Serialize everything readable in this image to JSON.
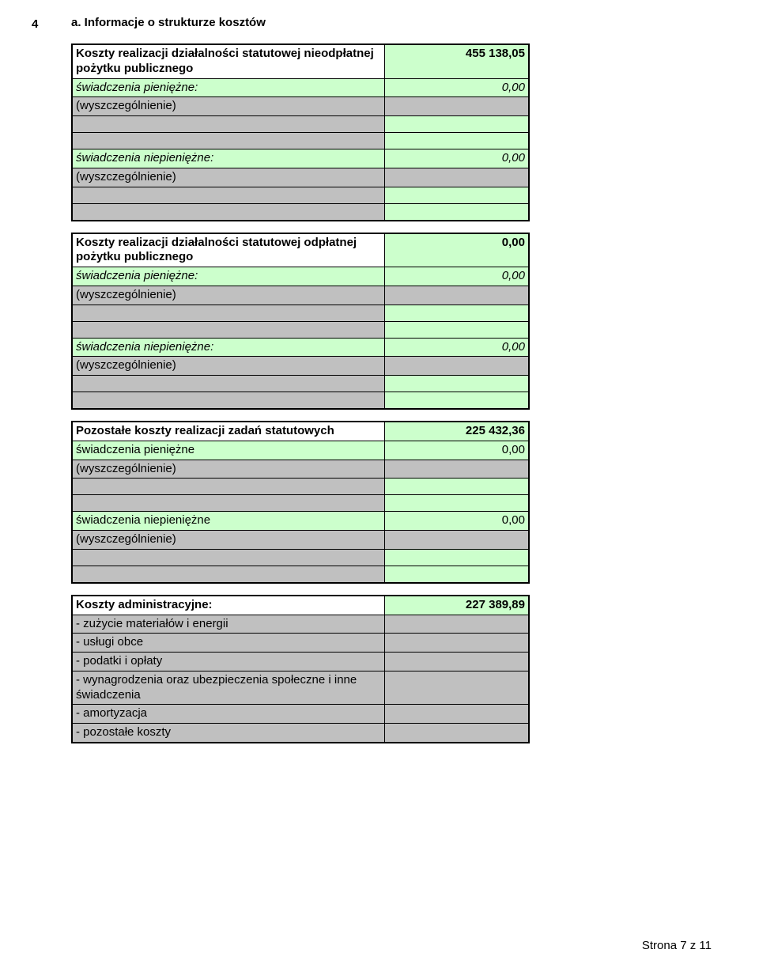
{
  "row_number": "4",
  "heading": "a. Informacje o strukturze kosztów",
  "block1": {
    "title": "Koszty realizacji działalności statutowej nieodpłatnej pożytku publicznego",
    "title_val": "455 138,05",
    "r1_label": "świadczenia pieniężne:",
    "r1_val": "0,00",
    "r2_label": "(wyszczególnienie)",
    "r3_label": "świadczenia niepieniężne:",
    "r3_val": "0,00",
    "r4_label": "(wyszczególnienie)"
  },
  "block2": {
    "title": "Koszty realizacji działalności statutowej odpłatnej pożytku publicznego",
    "title_val": "0,00",
    "r1_label": "świadczenia pieniężne:",
    "r1_val": "0,00",
    "r2_label": "(wyszczególnienie)",
    "r3_label": "świadczenia niepieniężne:",
    "r3_val": "0,00",
    "r4_label": "(wyszczególnienie)"
  },
  "block3": {
    "title": "Pozostałe koszty realizacji zadań statutowych",
    "title_val": "225 432,36",
    "r1_label": "świadczenia pieniężne",
    "r1_val": "0,00",
    "r2_label": "(wyszczególnienie)",
    "r3_label": "świadczenia niepieniężne",
    "r3_val": "0,00",
    "r4_label": "(wyszczególnienie)"
  },
  "block4": {
    "title": "Koszty administracyjne:",
    "title_val": "227 389,89",
    "items": {
      "i1": "- zużycie materiałów i energii",
      "i2": "- usługi obce",
      "i3": "- podatki i opłaty",
      "i4": "- wynagrodzenia oraz ubezpieczenia społeczne i inne świadczenia",
      "i5": "- amortyzacja",
      "i6": "- pozostałe koszty"
    }
  },
  "footer": "Strona 7 z 11",
  "colors": {
    "green": "#ccffcc",
    "gray": "#c0c0c0",
    "white": "#ffffff",
    "border": "#000000"
  }
}
